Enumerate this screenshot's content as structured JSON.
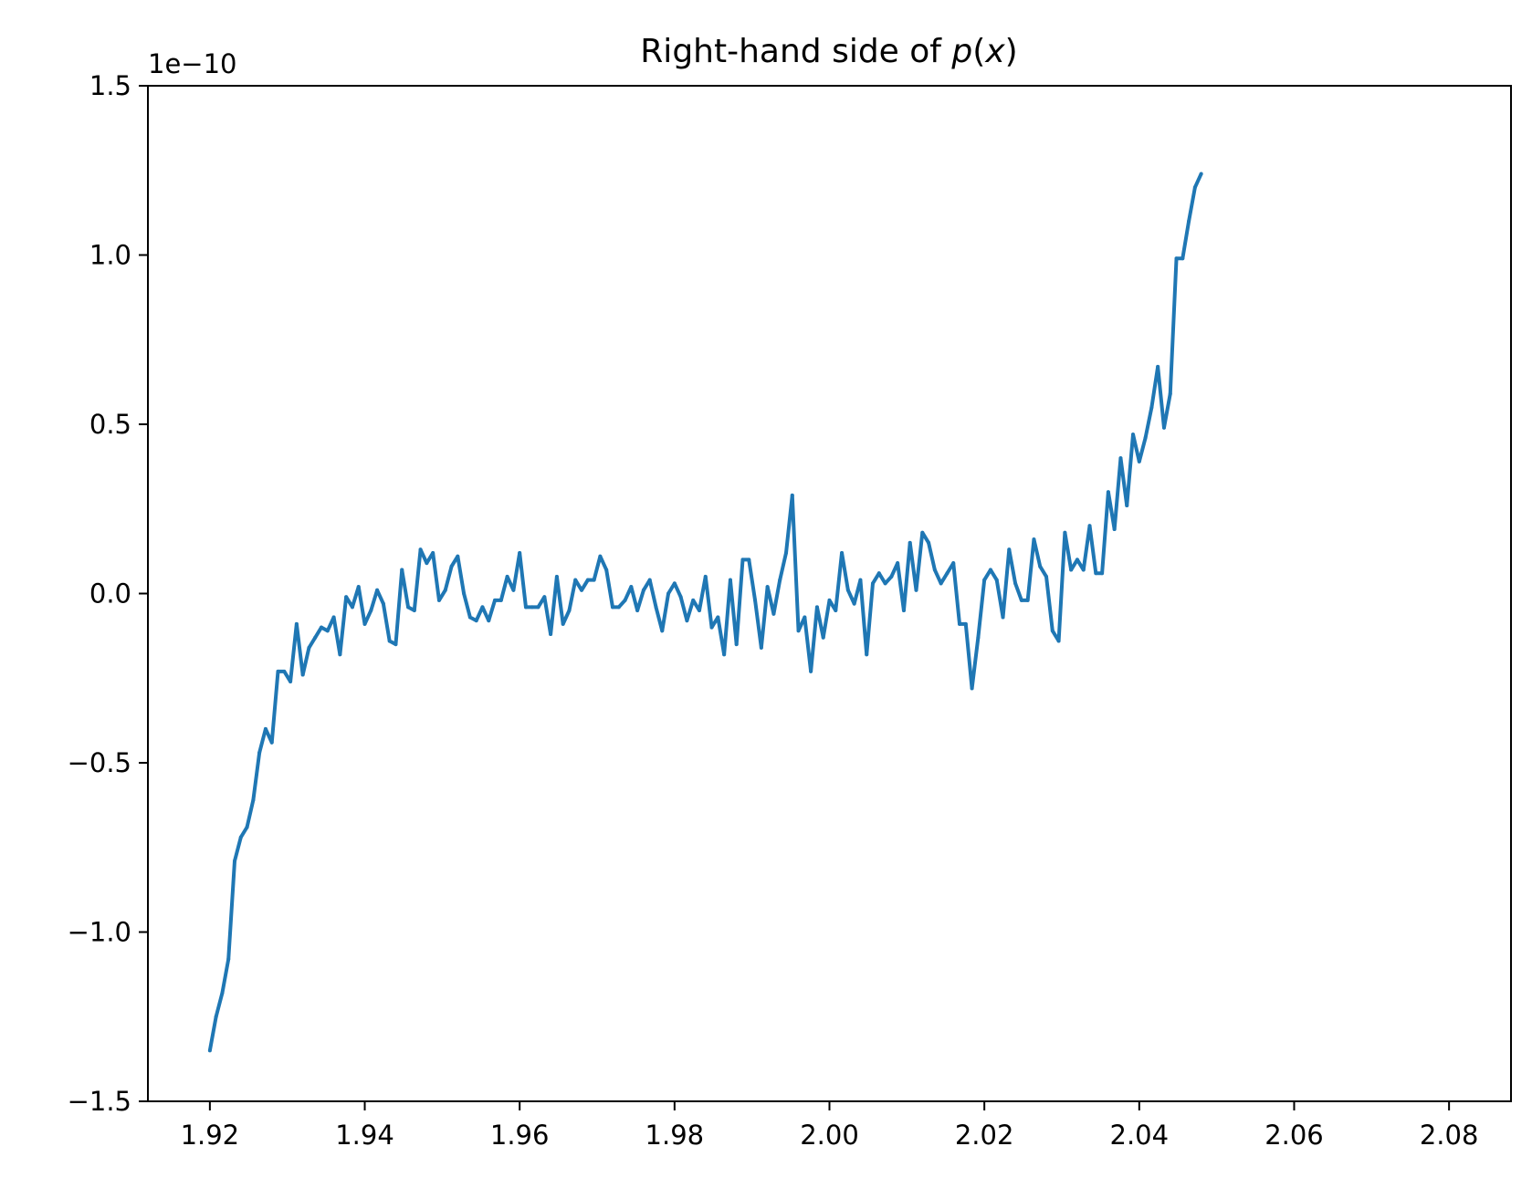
{
  "chart_data": {
    "type": "line",
    "title": "Right-hand side of p(x)",
    "title_parts": {
      "prefix": "Right-hand side of ",
      "func": "p",
      "open": "(",
      "var": "x",
      "close": ")"
    },
    "xlabel": "",
    "ylabel": "",
    "y_offset_label": "1e−10",
    "y_scale": 1e-10,
    "xlim": [
      1.912,
      2.088
    ],
    "ylim": [
      -1.5,
      1.5
    ],
    "x_ticks": [
      1.92,
      1.94,
      1.96,
      1.98,
      2.0,
      2.02,
      2.04,
      2.06,
      2.08
    ],
    "x_tick_labels": [
      "1.92",
      "1.94",
      "1.96",
      "1.98",
      "2.00",
      "2.02",
      "2.04",
      "2.06",
      "2.08"
    ],
    "y_ticks": [
      -1.5,
      -1.0,
      -0.5,
      0.0,
      0.5,
      1.0,
      1.5
    ],
    "y_tick_labels": [
      "−1.5",
      "−1.0",
      "−0.5",
      "0.0",
      "0.5",
      "1.0",
      "1.5"
    ],
    "grid": false,
    "color": "#1f77b4",
    "series": [
      {
        "x_start": 1.92,
        "x_step": 0.0008,
        "values": [
          -1.35,
          -1.25,
          -1.18,
          -1.08,
          -0.79,
          -0.72,
          -0.69,
          -0.61,
          -0.47,
          -0.4,
          -0.44,
          -0.23,
          -0.23,
          -0.26,
          -0.09,
          -0.24,
          -0.16,
          -0.13,
          -0.1,
          -0.11,
          -0.07,
          -0.18,
          -0.01,
          -0.04,
          0.02,
          -0.09,
          -0.05,
          0.01,
          -0.03,
          -0.14,
          -0.15,
          0.07,
          -0.04,
          -0.05,
          0.13,
          0.09,
          0.12,
          -0.02,
          0.01,
          0.08,
          0.11,
          0.0,
          -0.07,
          -0.08,
          -0.04,
          -0.08,
          -0.02,
          -0.02,
          0.05,
          0.01,
          0.12,
          -0.04,
          -0.04,
          -0.04,
          -0.01,
          -0.12,
          0.05,
          -0.09,
          -0.05,
          0.04,
          0.01,
          0.04,
          0.04,
          0.11,
          0.07,
          -0.04,
          -0.04,
          -0.02,
          0.02,
          -0.05,
          0.01,
          0.04,
          -0.04,
          -0.11,
          0.0,
          0.03,
          -0.01,
          -0.08,
          -0.02,
          -0.05,
          0.05,
          -0.1,
          -0.07,
          -0.18,
          0.04,
          -0.15,
          0.1,
          0.1,
          -0.02,
          -0.16,
          0.02,
          -0.06,
          0.04,
          0.12,
          0.29,
          -0.11,
          -0.07,
          -0.23,
          -0.04,
          -0.13,
          -0.02,
          -0.05,
          0.12,
          0.01,
          -0.03,
          0.04,
          -0.18,
          0.03,
          0.06,
          0.03,
          0.05,
          0.09,
          -0.05,
          0.15,
          0.01,
          0.18,
          0.15,
          0.07,
          0.03,
          0.06,
          0.09,
          -0.09,
          -0.09,
          -0.28,
          -0.13,
          0.04,
          0.07,
          0.04,
          -0.07,
          0.13,
          0.03,
          -0.02,
          -0.02,
          0.16,
          0.08,
          0.05,
          -0.11,
          -0.14,
          0.18,
          0.07,
          0.1,
          0.07,
          0.2,
          0.06,
          0.06,
          0.3,
          0.19,
          0.4,
          0.26,
          0.47,
          0.39,
          0.46,
          0.55,
          0.67,
          0.49,
          0.59,
          0.99,
          0.99,
          1.1,
          1.2,
          1.24
        ]
      }
    ]
  }
}
